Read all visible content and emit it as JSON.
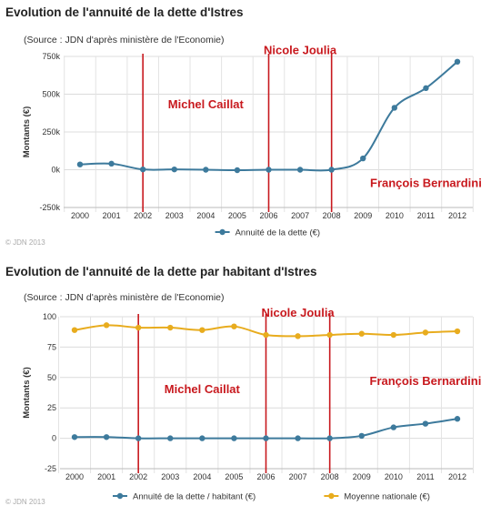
{
  "chart_data": [
    {
      "type": "line",
      "title": "Evolution de l'annuité de la dette d'Istres",
      "subtitle": "(Source : JDN d'après ministère de l'Economie)",
      "copyright": "© JDN 2013",
      "ylabel": "Montants (€)",
      "x": [
        "2000",
        "2001",
        "2002",
        "2003",
        "2004",
        "2005",
        "2006",
        "2007",
        "2008",
        "2009",
        "2010",
        "2011",
        "2012"
      ],
      "ylim": [
        -250000,
        750000
      ],
      "yticks": [
        {
          "value": -250000,
          "label": "-250k"
        },
        {
          "value": 0,
          "label": "0k"
        },
        {
          "value": 250000,
          "label": "250k"
        },
        {
          "value": 500000,
          "label": "500k"
        },
        {
          "value": 750000,
          "label": "750k"
        }
      ],
      "grid": true,
      "legend_position": "bottom",
      "series": [
        {
          "name": "Annuité de la dette (€)",
          "color": "#3d7a9c",
          "values": [
            35000,
            40000,
            2000,
            2000,
            0,
            -3000,
            0,
            0,
            0,
            75000,
            410000,
            540000,
            715000
          ]
        }
      ],
      "markers": [
        {
          "year": "2002",
          "color": "#c8191e"
        },
        {
          "year": "2006",
          "color": "#c8191e"
        },
        {
          "year": "2008",
          "color": "#c8191e"
        }
      ],
      "annotations": [
        {
          "text": "Michel Caillat",
          "x": "2004",
          "y": 430000
        },
        {
          "text": "Nicole Joulia",
          "x": "2007",
          "y": 790000
        },
        {
          "text": "François Bernardini",
          "x": "2011",
          "y": -90000
        }
      ]
    },
    {
      "type": "line",
      "title": "Evolution de l'annuité de la dette par habitant d'Istres",
      "subtitle": "(Source : JDN d'après ministère de l'Economie)",
      "copyright": "© JDN 2013",
      "ylabel": "Montants (€)",
      "x": [
        "2000",
        "2001",
        "2002",
        "2003",
        "2004",
        "2005",
        "2006",
        "2007",
        "2008",
        "2009",
        "2010",
        "2011",
        "2012"
      ],
      "ylim": [
        -25,
        100
      ],
      "yticks": [
        {
          "value": -25,
          "label": "-25"
        },
        {
          "value": 0,
          "label": "0"
        },
        {
          "value": 25,
          "label": "25"
        },
        {
          "value": 50,
          "label": "50"
        },
        {
          "value": 75,
          "label": "75"
        },
        {
          "value": 100,
          "label": "100"
        }
      ],
      "grid": true,
      "legend_position": "bottom",
      "series": [
        {
          "name": "Annuité de la dette / habitant (€)",
          "color": "#3d7a9c",
          "values": [
            1,
            1,
            0,
            0,
            0,
            0,
            0,
            0,
            0,
            2,
            9,
            12,
            16
          ]
        },
        {
          "name": "Moyenne nationale (€)",
          "color": "#e8ac1e",
          "values": [
            89,
            93,
            91,
            91,
            89,
            92,
            85,
            84,
            85,
            86,
            85,
            87,
            88
          ]
        }
      ],
      "markers": [
        {
          "year": "2002",
          "color": "#c8191e"
        },
        {
          "year": "2006",
          "color": "#c8191e"
        },
        {
          "year": "2008",
          "color": "#c8191e"
        }
      ],
      "annotations": [
        {
          "text": "Michel Caillat",
          "x": "2004",
          "y": 40
        },
        {
          "text": "Nicole Joulia",
          "x": "2007",
          "y": 103
        },
        {
          "text": "François Bernardini",
          "x": "2011",
          "y": 47
        }
      ]
    }
  ]
}
